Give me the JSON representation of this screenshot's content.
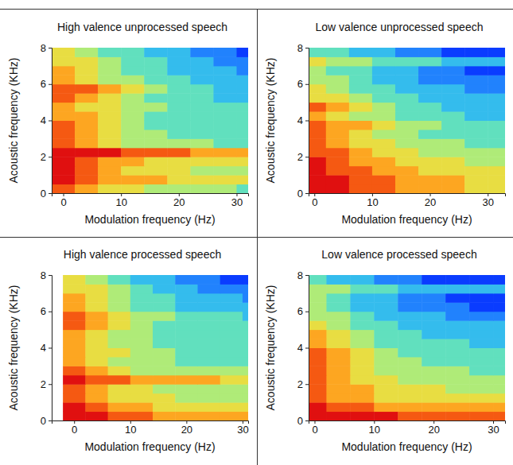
{
  "chart_data": [
    {
      "type": "heatmap",
      "title": "High valence unprocessed speech",
      "xlabel": "Modulation frequency (Hz)",
      "ylabel": "Acoustic frequency (KHz)",
      "xlim": [
        -2,
        32
      ],
      "ylim": [
        0,
        8
      ],
      "xticks": [
        0,
        10,
        20,
        30
      ],
      "yticks": [
        0,
        2,
        4,
        6,
        8
      ],
      "x": [
        0,
        4,
        8,
        12,
        16,
        20,
        24,
        28,
        32
      ],
      "y": [
        0.25,
        0.75,
        1.25,
        1.75,
        2.25,
        2.75,
        3.25,
        3.75,
        4.25,
        4.75,
        5.25,
        5.75,
        6.25,
        6.75,
        7.25,
        7.75
      ],
      "values": [
        [
          8,
          7,
          6,
          6,
          5,
          5,
          5,
          5,
          4
        ],
        [
          9,
          8,
          7,
          7,
          7,
          6,
          6,
          6,
          6
        ],
        [
          9,
          8,
          7,
          6,
          6,
          6,
          5,
          5,
          5
        ],
        [
          9,
          8,
          7,
          7,
          6,
          6,
          6,
          6,
          6
        ],
        [
          9,
          9,
          9,
          8,
          8,
          8,
          7,
          7,
          7
        ],
        [
          8,
          7,
          6,
          5,
          5,
          5,
          5,
          4,
          4
        ],
        [
          8,
          7,
          6,
          5,
          5,
          4,
          4,
          4,
          4
        ],
        [
          8,
          7,
          6,
          5,
          4,
          4,
          4,
          4,
          4
        ],
        [
          7,
          7,
          6,
          5,
          4,
          4,
          4,
          4,
          4
        ],
        [
          7,
          6,
          6,
          5,
          5,
          4,
          4,
          4,
          4
        ],
        [
          8,
          7,
          6,
          5,
          4,
          4,
          4,
          3,
          3
        ],
        [
          8,
          8,
          7,
          6,
          5,
          4,
          4,
          3,
          3
        ],
        [
          7,
          6,
          5,
          5,
          4,
          4,
          3,
          3,
          3
        ],
        [
          7,
          6,
          5,
          4,
          4,
          3,
          3,
          3,
          2
        ],
        [
          6,
          6,
          5,
          4,
          4,
          3,
          3,
          2,
          2
        ],
        [
          6,
          5,
          4,
          4,
          3,
          3,
          2,
          2,
          1
        ]
      ]
    },
    {
      "type": "heatmap",
      "title": "Low valence unprocessed speech",
      "xlabel": "Modulation frequency (Hz)",
      "ylabel": "Acoustic frequency (KHz)",
      "xlim": [
        -1,
        33
      ],
      "ylim": [
        0,
        8
      ],
      "xticks": [
        0,
        10,
        20,
        30
      ],
      "yticks": [
        0,
        2,
        4,
        6,
        8
      ],
      "x": [
        0,
        4,
        8,
        12,
        16,
        20,
        24,
        28,
        32
      ],
      "y": [
        0.25,
        0.75,
        1.25,
        1.75,
        2.25,
        2.75,
        3.25,
        3.75,
        4.25,
        4.75,
        5.25,
        5.75,
        6.25,
        6.75,
        7.25,
        7.75
      ],
      "values": [
        [
          9,
          9,
          8,
          8,
          7,
          7,
          7,
          6,
          6
        ],
        [
          9,
          9,
          8,
          8,
          7,
          7,
          7,
          6,
          6
        ],
        [
          9,
          8,
          8,
          7,
          7,
          6,
          6,
          6,
          6
        ],
        [
          9,
          8,
          7,
          7,
          6,
          6,
          6,
          5,
          5
        ],
        [
          8,
          8,
          7,
          6,
          6,
          5,
          5,
          5,
          5
        ],
        [
          8,
          7,
          6,
          6,
          5,
          5,
          5,
          4,
          4
        ],
        [
          8,
          7,
          6,
          5,
          5,
          4,
          4,
          4,
          4
        ],
        [
          8,
          7,
          7,
          6,
          5,
          5,
          4,
          4,
          4
        ],
        [
          7,
          6,
          5,
          5,
          4,
          4,
          4,
          3,
          3
        ],
        [
          8,
          7,
          6,
          5,
          4,
          4,
          3,
          3,
          3
        ],
        [
          6,
          6,
          5,
          4,
          4,
          3,
          3,
          3,
          3
        ],
        [
          6,
          5,
          4,
          4,
          3,
          3,
          3,
          2,
          2
        ],
        [
          5,
          5,
          4,
          3,
          3,
          2,
          2,
          2,
          2
        ],
        [
          5,
          4,
          4,
          3,
          3,
          2,
          2,
          1,
          1
        ],
        [
          6,
          5,
          5,
          4,
          4,
          4,
          3,
          3,
          3
        ],
        [
          4,
          4,
          3,
          3,
          2,
          2,
          1,
          1,
          1
        ]
      ]
    },
    {
      "type": "heatmap",
      "title": "High valence processed speech",
      "xlabel": "Modulation frequency (Hz)",
      "ylabel": "Acoustic frequency (KHz)",
      "xlim": [
        -4,
        31
      ],
      "ylim": [
        0,
        8
      ],
      "xticks": [
        0,
        10,
        20,
        30
      ],
      "yticks": [
        0,
        2,
        4,
        6,
        8
      ],
      "x": [
        0,
        4,
        8,
        12,
        16,
        20,
        24,
        28,
        32
      ],
      "y": [
        0.25,
        0.75,
        1.25,
        1.75,
        2.25,
        2.75,
        3.25,
        3.75,
        4.25,
        4.75,
        5.25,
        5.75,
        6.25,
        6.75,
        7.25,
        7.75
      ],
      "values": [
        [
          9,
          9,
          8,
          8,
          7,
          7,
          7,
          7,
          7
        ],
        [
          9,
          8,
          7,
          7,
          6,
          6,
          6,
          6,
          6
        ],
        [
          8,
          7,
          6,
          6,
          6,
          5,
          5,
          5,
          5
        ],
        [
          8,
          7,
          6,
          6,
          5,
          5,
          5,
          5,
          5
        ],
        [
          9,
          8,
          8,
          7,
          7,
          7,
          7,
          6,
          6
        ],
        [
          8,
          7,
          6,
          5,
          5,
          5,
          5,
          5,
          5
        ],
        [
          7,
          6,
          5,
          5,
          5,
          4,
          4,
          4,
          4
        ],
        [
          7,
          6,
          6,
          5,
          5,
          4,
          4,
          4,
          4
        ],
        [
          7,
          6,
          5,
          5,
          4,
          4,
          4,
          4,
          4
        ],
        [
          7,
          6,
          5,
          5,
          4,
          4,
          4,
          4,
          4
        ],
        [
          8,
          7,
          6,
          5,
          4,
          4,
          4,
          4,
          4
        ],
        [
          8,
          7,
          6,
          5,
          5,
          4,
          4,
          4,
          3
        ],
        [
          7,
          6,
          5,
          4,
          4,
          3,
          3,
          3,
          3
        ],
        [
          7,
          6,
          5,
          4,
          4,
          3,
          3,
          3,
          2
        ],
        [
          6,
          6,
          5,
          4,
          3,
          3,
          2,
          2,
          2
        ],
        [
          6,
          5,
          4,
          3,
          3,
          2,
          2,
          1,
          1
        ]
      ]
    },
    {
      "type": "heatmap",
      "title": "Low valence processed speech",
      "xlabel": "Modulation frequency (Hz)",
      "ylabel": "Acoustic frequency (KHz)",
      "xlim": [
        -1,
        32
      ],
      "ylim": [
        0,
        8
      ],
      "xticks": [
        0,
        10,
        20,
        30
      ],
      "yticks": [
        0,
        2,
        4,
        6,
        8
      ],
      "x": [
        0,
        4,
        8,
        12,
        16,
        20,
        24,
        28,
        32
      ],
      "y": [
        0.25,
        0.75,
        1.25,
        1.75,
        2.25,
        2.75,
        3.25,
        3.75,
        4.25,
        4.75,
        5.25,
        5.75,
        6.25,
        6.75,
        7.25,
        7.75
      ],
      "values": [
        [
          9,
          9,
          9,
          9,
          8,
          8,
          8,
          8,
          8
        ],
        [
          9,
          8,
          8,
          7,
          7,
          7,
          7,
          7,
          7
        ],
        [
          8,
          7,
          7,
          6,
          6,
          6,
          6,
          6,
          6
        ],
        [
          8,
          7,
          7,
          6,
          6,
          6,
          5,
          5,
          5
        ],
        [
          8,
          7,
          6,
          6,
          5,
          5,
          5,
          5,
          5
        ],
        [
          8,
          7,
          6,
          5,
          5,
          5,
          5,
          4,
          4
        ],
        [
          8,
          7,
          6,
          5,
          5,
          4,
          4,
          4,
          4
        ],
        [
          8,
          7,
          6,
          5,
          4,
          4,
          4,
          4,
          4
        ],
        [
          7,
          6,
          5,
          4,
          4,
          4,
          4,
          3,
          3
        ],
        [
          7,
          6,
          5,
          4,
          4,
          3,
          3,
          3,
          3
        ],
        [
          6,
          5,
          4,
          4,
          3,
          3,
          3,
          3,
          3
        ],
        [
          5,
          5,
          4,
          3,
          3,
          3,
          2,
          2,
          2
        ],
        [
          5,
          4,
          3,
          3,
          2,
          2,
          2,
          1,
          1
        ],
        [
          5,
          4,
          3,
          3,
          2,
          2,
          1,
          1,
          1
        ],
        [
          5,
          5,
          4,
          4,
          3,
          3,
          3,
          3,
          3
        ],
        [
          4,
          3,
          3,
          2,
          2,
          1,
          1,
          1,
          1
        ]
      ]
    }
  ]
}
